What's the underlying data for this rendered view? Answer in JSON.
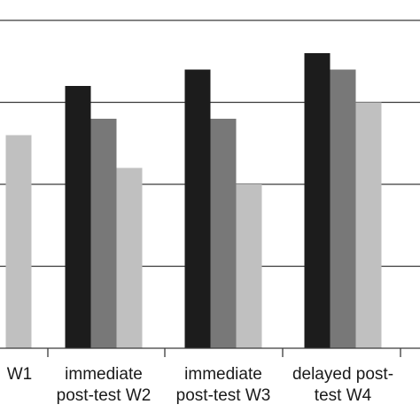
{
  "chart_data": {
    "type": "bar",
    "title": "",
    "xlabel": "",
    "ylabel": "",
    "categories": [
      [
        "W1"
      ],
      [
        "immediate",
        "post-test W2"
      ],
      [
        "immediate",
        "post-test W3"
      ],
      [
        "delayed post-",
        "test W4"
      ]
    ],
    "series": [
      {
        "color": "#1c1c1c",
        "values": [
          null,
          3.2,
          3.4,
          3.6
        ]
      },
      {
        "color": "#787878",
        "values": [
          null,
          2.8,
          2.8,
          3.4
        ]
      },
      {
        "color": "#c0c0c0",
        "values": [
          2.6,
          2.2,
          2.0,
          3.0
        ]
      }
    ],
    "ylim": [
      0,
      4.2
    ],
    "gridlines": [
      1,
      2,
      3,
      4
    ],
    "grid": true,
    "legend": "none"
  }
}
